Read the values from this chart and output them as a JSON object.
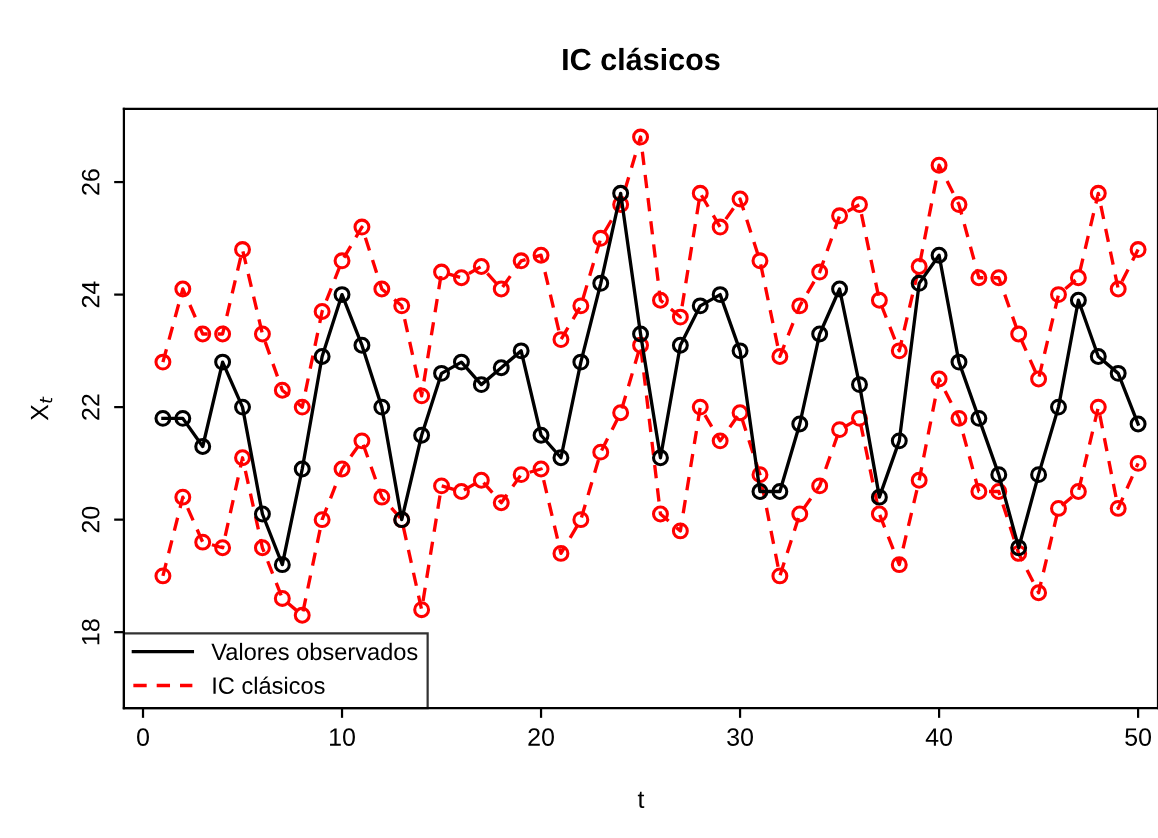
{
  "chart_data": {
    "type": "line",
    "title": "IC clásicos",
    "xlabel": "t",
    "ylabel": "X$_{t}$",
    "x": [
      1,
      2,
      3,
      4,
      5,
      6,
      7,
      8,
      9,
      10,
      11,
      12,
      13,
      14,
      15,
      16,
      17,
      18,
      19,
      20,
      21,
      22,
      23,
      24,
      25,
      26,
      27,
      28,
      29,
      30,
      31,
      32,
      33,
      34,
      35,
      36,
      37,
      38,
      39,
      40,
      41,
      42,
      43,
      44,
      45,
      46,
      47,
      48,
      49,
      50
    ],
    "series": [
      {
        "name": "Valores observados",
        "color": "#000000",
        "line_style": "solid",
        "values": [
          21.8,
          21.8,
          21.3,
          22.8,
          22.0,
          20.1,
          19.2,
          20.9,
          22.9,
          24.0,
          23.1,
          22.0,
          20.0,
          21.5,
          22.6,
          22.8,
          22.4,
          22.7,
          23.0,
          21.5,
          21.1,
          22.8,
          24.2,
          25.8,
          23.3,
          21.1,
          23.1,
          23.8,
          24.0,
          23.0,
          20.5,
          20.5,
          21.7,
          23.3,
          24.1,
          22.4,
          20.4,
          21.4,
          24.2,
          24.7,
          22.8,
          21.8,
          20.8,
          19.5,
          20.8,
          22.0,
          23.9,
          22.9,
          22.6,
          21.7
        ]
      },
      {
        "name": "IC clásicos",
        "color": "#ff0000",
        "line_style": "dashed",
        "values": [
          22.8,
          24.1,
          23.3,
          23.3,
          24.8,
          23.3,
          22.3,
          22.0,
          23.7,
          24.6,
          25.2,
          24.1,
          23.8,
          22.2,
          24.4,
          24.3,
          24.5,
          24.1,
          24.6,
          24.7,
          23.2,
          23.8,
          25.0,
          25.6,
          26.8,
          23.9,
          23.6,
          25.8,
          25.2,
          25.7,
          24.6,
          22.9,
          23.8,
          24.4,
          25.4,
          25.6,
          23.9,
          23.0,
          24.5,
          26.3,
          25.6,
          24.3,
          24.3,
          23.3,
          22.5,
          24.0,
          24.3,
          25.8,
          24.1,
          24.8
        ]
      },
      {
        "color": "#ff0000",
        "line_style": "dashed",
        "values": [
          19.0,
          20.4,
          19.6,
          19.5,
          21.1,
          19.5,
          18.6,
          18.3,
          20.0,
          20.9,
          21.4,
          20.4,
          20.0,
          18.4,
          20.6,
          20.5,
          20.7,
          20.3,
          20.8,
          20.9,
          19.4,
          20.0,
          21.2,
          21.9,
          23.1,
          20.1,
          19.8,
          22.0,
          21.4,
          21.9,
          20.8,
          19.0,
          20.1,
          20.6,
          21.6,
          21.8,
          20.1,
          19.2,
          20.7,
          22.5,
          21.8,
          20.5,
          20.5,
          19.4,
          18.7,
          20.2,
          20.5,
          22.0,
          20.2,
          21.0
        ]
      }
    ],
    "marker": "circle",
    "xlim": [
      -0.96,
      51.0
    ],
    "ylim": [
      16.65,
      27.3
    ],
    "xticks": [
      0,
      10,
      20,
      30,
      40,
      50
    ],
    "yticks": [
      18,
      20,
      22,
      24,
      26
    ],
    "grid": false,
    "legend": "bottom left"
  }
}
